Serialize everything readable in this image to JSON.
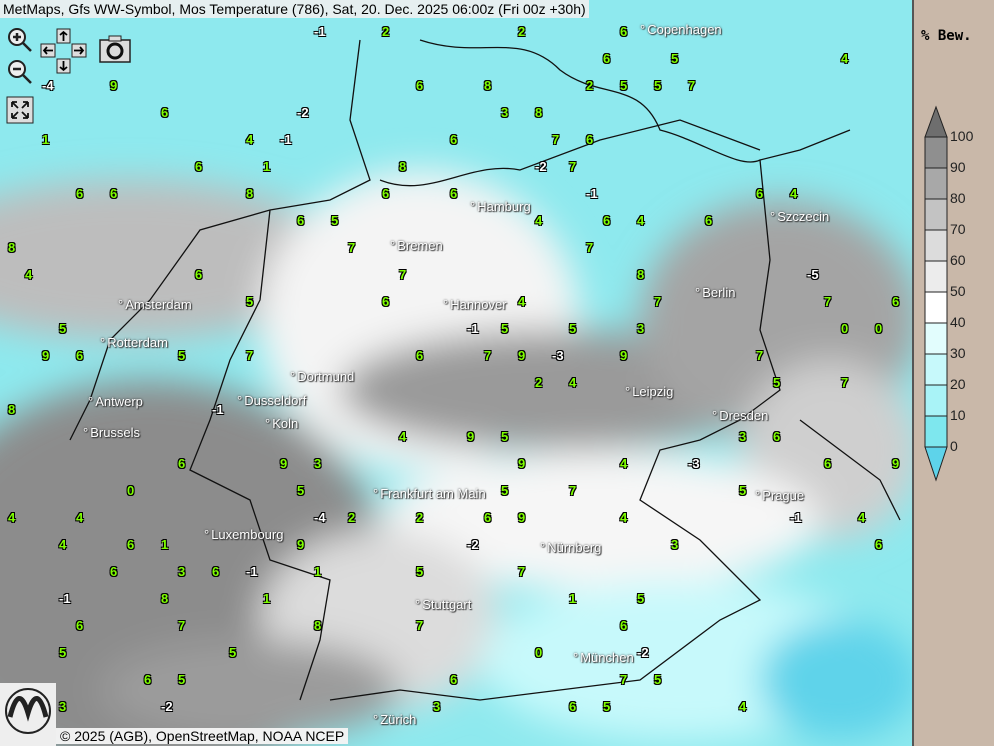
{
  "title": "MetMaps, Gfs WW-Symbol, Mos Temperature (786), Sat, 20. Dec. 2025 06:00z (Fri 00z +30h)",
  "controls": {
    "zoom_in": "zoom-in-icon",
    "zoom_out": "zoom-out-icon",
    "pan": "pan-arrows-icon",
    "screenshot": "camera-icon",
    "fullscreen": "fullscreen-icon"
  },
  "cities": [
    "Copenhagen",
    "Hamburg",
    "Szczecin",
    "Bremen",
    "Amsterdam",
    "Hannover",
    "Berlin",
    "Rotterdam",
    "Dortmund",
    "Antwerp",
    "Dusseldorf",
    "Leipzig",
    "Dresden",
    "Brussels",
    "Koln",
    "Frankfurt am Main",
    "Prague",
    "Luxembourg",
    "Nürnberg",
    "Stuttgart",
    "München",
    "Zürich"
  ],
  "temperatures": [
    "9",
    "9",
    "8",
    "6",
    "7",
    "6",
    "6",
    "7",
    "9",
    "9",
    "8",
    "9",
    "9",
    "8",
    "8",
    "6",
    "7",
    "9",
    "9",
    "8",
    "8",
    "7",
    "5",
    "5",
    "6",
    "6",
    "5",
    "6",
    "6",
    "7",
    "9",
    "9",
    "7",
    "5",
    "4",
    "4",
    "5",
    "5",
    "4",
    "6",
    "6",
    "5",
    "4",
    "4",
    "4",
    "3",
    "4",
    "5",
    "6",
    "7",
    "6",
    "4",
    "4",
    "5",
    "3",
    "5",
    "5",
    "5",
    "6",
    "6",
    "4",
    "5",
    "4",
    "5",
    "6",
    "5",
    "7",
    "6",
    "6",
    "7",
    "6",
    "6",
    "6",
    "6",
    "5",
    "4",
    "5",
    "6",
    "7",
    "6",
    "6",
    "6",
    "5",
    "4",
    "3",
    "2",
    "2",
    "3",
    "6",
    "7",
    "6",
    "6",
    "7",
    "4",
    "3",
    "2",
    "1",
    "0",
    "-1",
    "0",
    "6",
    "7",
    "7",
    "7",
    "6",
    "5",
    "4",
    "3",
    "2",
    "-1",
    "-2",
    "-1",
    "8",
    "7",
    "6",
    "5",
    "4",
    "3",
    "1",
    "-1",
    "-2",
    "-3",
    "-4",
    "-1",
    "8",
    "8",
    "7",
    "6",
    "6",
    "5",
    "3",
    "1",
    "-2",
    "-3",
    "-5",
    "-2",
    "-1",
    "1",
    "0",
    "1",
    "2",
    "2",
    "1",
    "-1",
    "-4",
    "-2",
    "-1",
    "0"
  ],
  "legend": {
    "title": "% Bew.",
    "labels": [
      "100",
      "90",
      "80",
      "70",
      "60",
      "50",
      "40",
      "30",
      "20",
      "10",
      "0"
    ],
    "colors": [
      "#6e6e6e",
      "#8f8f8f",
      "#a8a8a8",
      "#c3c3c3",
      "#dcdcdc",
      "#ececec",
      "#ffffff",
      "#e2fdfd",
      "#c7f9fb",
      "#a9f3f7",
      "#7ee7ee",
      "#5ed3ea"
    ]
  },
  "copyright": "© 2025 (AGB), OpenStreetMap, NOAA NCEP",
  "logo": "METMAPS"
}
